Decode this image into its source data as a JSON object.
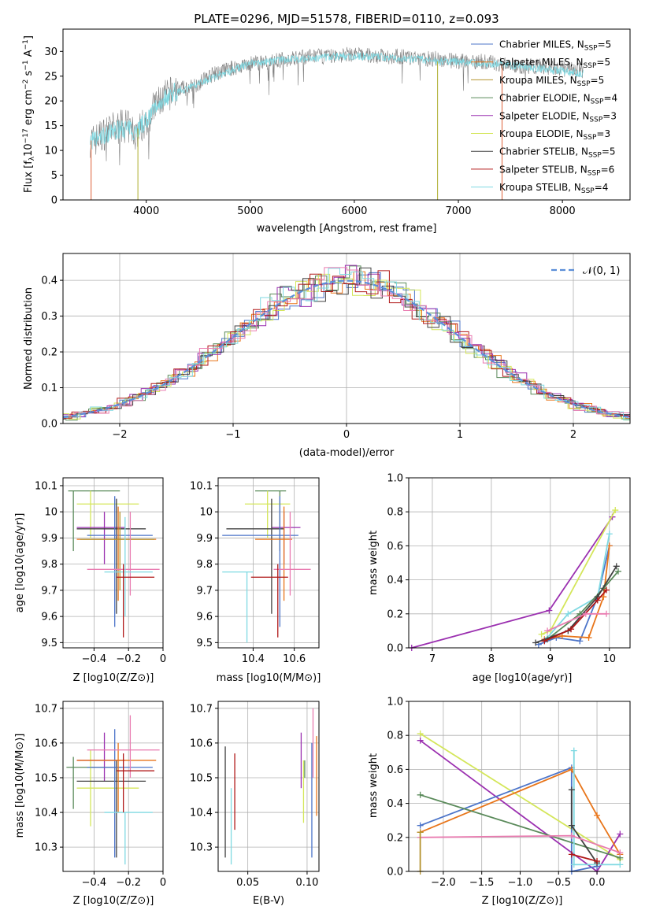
{
  "chart_data": [
    {
      "id": "spectrum",
      "type": "line",
      "title": "PLATE=0296, MJD=51578, FIBERID=0110, z=0.093",
      "xlabel": "wavelength [Angstrom, rest frame]",
      "ylabel_parts": [
        "Flux [f",
        "λ",
        "10",
        "−17",
        " erg cm",
        "−2",
        " s",
        "−1",
        " A",
        "−1",
        "]"
      ],
      "xlim": [
        3200,
        8650
      ],
      "ylim": [
        0,
        34.5
      ],
      "xticks": [
        4000,
        5000,
        6000,
        7000,
        8000
      ],
      "yticks": [
        0,
        5,
        10,
        15,
        20,
        25,
        30
      ],
      "grid": false,
      "legend_position": "top-right",
      "colors": {
        "data": "#808080",
        "models": "#7fd9e2"
      },
      "data_series": {
        "name": "",
        "x": [
          3500,
          3600,
          3700,
          3800,
          3900,
          4000,
          4100,
          4200,
          4300,
          4400,
          4500,
          4600,
          4800,
          5000,
          5200,
          5400,
          5600,
          5800,
          6000,
          6200,
          6400,
          6600,
          6800,
          7000,
          7200,
          7400,
          7600,
          7800,
          8000,
          8200
        ],
        "y": [
          12,
          13.5,
          14.5,
          15,
          13.5,
          16,
          19.5,
          21,
          22.5,
          22.5,
          23.5,
          25,
          26.5,
          27.5,
          28,
          28.5,
          29,
          29,
          29.5,
          29,
          29,
          28.5,
          28.5,
          28,
          28,
          27.5,
          27,
          27,
          26.5,
          26
        ]
      },
      "model_series": {
        "name": "",
        "x": [
          3500,
          3600,
          3700,
          3800,
          3900,
          4000,
          4100,
          4200,
          4300,
          4400,
          4500,
          4600,
          4800,
          5000,
          5200,
          5400,
          5600,
          5800,
          6000,
          6200,
          6400,
          6600,
          6800,
          7000,
          7200,
          7400,
          7600,
          7800,
          8000,
          8200
        ],
        "y": [
          12,
          13,
          14,
          14.5,
          14,
          16,
          19,
          21,
          22,
          22.5,
          23.5,
          24.5,
          26,
          27.5,
          28,
          28.5,
          28.5,
          29,
          29,
          29,
          28.5,
          28.5,
          28,
          28,
          27.5,
          27.5,
          27,
          26.5,
          26,
          25.5
        ]
      },
      "edge_drops": [
        {
          "x": 3470,
          "color": "#e06f4a"
        },
        {
          "x": 3920,
          "color": "#b5b540"
        },
        {
          "x": 6800,
          "color": "#b5b540"
        },
        {
          "x": 7420,
          "color": "#e06f4a"
        }
      ],
      "legend": [
        {
          "color": "#4c74c9",
          "pre": "Chabrier MILES, N",
          "sub": "SSP",
          "post": "=5"
        },
        {
          "color": "#e8751a",
          "pre": "Salpeter MILES, N",
          "sub": "SSP",
          "post": "=5"
        },
        {
          "color": "#b5922e",
          "pre": "Kroupa MILES, N",
          "sub": "SSP",
          "post": "=5"
        },
        {
          "color": "#5a8a5a",
          "pre": "Chabrier ELODIE, N",
          "sub": "SSP",
          "post": "=4"
        },
        {
          "color": "#9b30b0",
          "pre": "Salpeter ELODIE, N",
          "sub": "SSP",
          "post": "=3"
        },
        {
          "color": "#d4e65a",
          "pre": "Kroupa ELODIE, N",
          "sub": "SSP",
          "post": "=3"
        },
        {
          "color": "#404040",
          "pre": "Chabrier STELIB, N",
          "sub": "SSP",
          "post": "=5"
        },
        {
          "color": "#b01818",
          "pre": "Salpeter STELIB, N",
          "sub": "SSP",
          "post": "=6"
        },
        {
          "color": "#7fd9e2",
          "pre": "Kroupa STELIB, N",
          "sub": "SSP",
          "post": "=4"
        }
      ]
    },
    {
      "id": "residuals",
      "type": "line",
      "xlabel": "(data-model)/error",
      "ylabel": "Normed distribution",
      "xlim": [
        -2.5,
        2.5
      ],
      "ylim": [
        0,
        0.475
      ],
      "xticks": [
        -2,
        -1,
        0,
        1,
        2
      ],
      "ytick_labels": [
        "0.0",
        "0.1",
        "0.2",
        "0.3",
        "0.4"
      ],
      "grid": true,
      "legend_position": "top-right",
      "legend_label": "𝒩(0, 1)",
      "gaussian_color": "#5b8ed8",
      "hist_colors": [
        "#4c74c9",
        "#e8751a",
        "#5a8a5a",
        "#9b30b0",
        "#d4e65a",
        "#404040",
        "#b01818",
        "#7fd9e2",
        "#e97bb0"
      ],
      "bin_width": 0.1
    },
    {
      "id": "age-vs-Z",
      "type": "scatter",
      "xlabel": "Z [log10(Z/Z⊙)]",
      "ylabel": "age [log10(age/yr)]",
      "xlim": [
        -0.58,
        0.0
      ],
      "ylim": [
        9.48,
        10.13
      ],
      "xticks": [
        -0.4,
        -0.2,
        0.0
      ],
      "yticks": [
        9.5,
        9.6,
        9.7,
        9.8,
        9.9,
        10.0,
        10.1
      ],
      "grid": true,
      "points": [
        {
          "color": "#5a8a5a",
          "x": -0.52,
          "y": 10.08,
          "xerr": 0.0,
          "yerr": 0.0,
          "xlo": -0.55,
          "xhi": -0.25,
          "ylo": 9.85,
          "yhi": 10.08
        },
        {
          "color": "#d4e65a",
          "x": -0.42,
          "y": 10.03,
          "xlo": -0.5,
          "xhi": -0.14,
          "ylo": 9.9,
          "yhi": 10.08
        },
        {
          "color": "#9b30b0",
          "x": -0.34,
          "y": 9.94,
          "xlo": -0.5,
          "xhi": -0.22,
          "ylo": 9.8,
          "yhi": 10.0
        },
        {
          "color": "#404040",
          "x": -0.27,
          "y": 9.935,
          "xlo": -0.5,
          "xhi": -0.1,
          "ylo": 9.61,
          "yhi": 10.05
        },
        {
          "color": "#4c74c9",
          "x": -0.28,
          "y": 9.91,
          "xlo": -0.44,
          "xhi": -0.06,
          "ylo": 9.56,
          "yhi": 10.06
        },
        {
          "color": "#e8751a",
          "x": -0.26,
          "y": 9.895,
          "xlo": -0.5,
          "xhi": -0.04,
          "ylo": 9.66,
          "yhi": 10.02
        },
        {
          "color": "#b5922e",
          "x": -0.25,
          "y": 9.895,
          "xlo": -0.48,
          "xhi": -0.05,
          "ylo": 9.7,
          "yhi": 10.0
        },
        {
          "color": "#e97bb0",
          "x": -0.19,
          "y": 9.78,
          "xlo": -0.44,
          "xhi": -0.02,
          "ylo": 9.68,
          "yhi": 10.0
        },
        {
          "color": "#7fd9e2",
          "x": -0.22,
          "y": 9.77,
          "xlo": -0.34,
          "xhi": -0.06,
          "ylo": 9.6,
          "yhi": 9.98
        },
        {
          "color": "#b01818",
          "x": -0.23,
          "y": 9.75,
          "xlo": -0.27,
          "xhi": -0.05,
          "ylo": 9.52,
          "yhi": 9.8
        }
      ]
    },
    {
      "id": "age-vs-mass",
      "type": "scatter",
      "xlabel": "mass [log10(M/M⊙)]",
      "ylabel": "",
      "xlim": [
        10.23,
        10.72
      ],
      "ylim": [
        9.48,
        10.13
      ],
      "xticks": [
        10.4,
        10.6
      ],
      "yticks": [
        9.5,
        9.6,
        9.7,
        9.8,
        9.9,
        10.0,
        10.1
      ],
      "grid": true,
      "points": [
        {
          "color": "#5a8a5a",
          "ylo": 9.85,
          "yhi": 10.08,
          "y": 10.08,
          "x": 10.53,
          "xlo": 10.41,
          "xhi": 10.56
        },
        {
          "color": "#d4e65a",
          "ylo": 9.9,
          "yhi": 10.08,
          "y": 10.03,
          "x": 10.47,
          "xlo": 10.36,
          "xhi": 10.58
        },
        {
          "color": "#9b30b0",
          "ylo": 9.8,
          "yhi": 10.0,
          "y": 9.94,
          "x": 10.55,
          "xlo": 10.49,
          "xhi": 10.63
        },
        {
          "color": "#404040",
          "ylo": 9.61,
          "yhi": 10.05,
          "y": 9.935,
          "x": 10.49,
          "xlo": 10.27,
          "xhi": 10.55
        },
        {
          "color": "#4c74c9",
          "ylo": 9.56,
          "yhi": 10.06,
          "y": 9.91,
          "x": 10.53,
          "xlo": 10.25,
          "xhi": 10.62
        },
        {
          "color": "#e8751a",
          "ylo": 9.66,
          "yhi": 10.02,
          "y": 9.895,
          "x": 10.55,
          "xlo": 10.41,
          "xhi": 10.59
        },
        {
          "color": "#e97bb0",
          "ylo": 9.68,
          "yhi": 10.0,
          "y": 9.78,
          "x": 10.58,
          "xlo": 10.5,
          "xhi": 10.68
        },
        {
          "color": "#7fd9e2",
          "ylo": 9.5,
          "yhi": 9.77,
          "y": 9.77,
          "x": 10.37,
          "xlo": 10.25,
          "xhi": 10.4
        },
        {
          "color": "#b01818",
          "ylo": 9.52,
          "yhi": 9.8,
          "y": 9.75,
          "x": 10.52,
          "xlo": 10.39,
          "xhi": 10.57
        }
      ]
    },
    {
      "id": "weight-vs-age",
      "type": "line",
      "xlabel": "age [log10(age/yr)]",
      "ylabel": "mass weight",
      "xlim": [
        6.6,
        10.35
      ],
      "ylim": [
        0,
        1.0
      ],
      "xticks": [
        7,
        8,
        9,
        10
      ],
      "ytick_labels": [
        "0.0",
        "0.2",
        "0.4",
        "0.6",
        "0.8",
        "1.0"
      ],
      "grid": true,
      "series": [
        {
          "color": "#9b30b0",
          "x": [
            6.65,
            8.98,
            10.05
          ],
          "y": [
            0.0,
            0.22,
            0.77
          ]
        },
        {
          "color": "#d4e65a",
          "x": [
            8.85,
            9.0,
            10.1
          ],
          "y": [
            0.08,
            0.1,
            0.81
          ]
        },
        {
          "color": "#4c74c9",
          "x": [
            8.8,
            9.1,
            9.5,
            9.8,
            10.0
          ],
          "y": [
            0.02,
            0.06,
            0.04,
            0.3,
            0.6
          ]
        },
        {
          "color": "#e8751a",
          "x": [
            8.9,
            9.2,
            9.65,
            9.9,
            10.0
          ],
          "y": [
            0.05,
            0.07,
            0.06,
            0.3,
            0.6
          ]
        },
        {
          "color": "#7fd9e2",
          "x": [
            8.95,
            9.3,
            9.8,
            10.0
          ],
          "y": [
            0.06,
            0.2,
            0.3,
            0.67
          ]
        },
        {
          "color": "#5a8a5a",
          "x": [
            8.95,
            9.5,
            9.9,
            10.15
          ],
          "y": [
            0.05,
            0.2,
            0.35,
            0.45
          ]
        },
        {
          "color": "#404040",
          "x": [
            8.75,
            9.3,
            9.8,
            10.12
          ],
          "y": [
            0.03,
            0.1,
            0.3,
            0.48
          ]
        },
        {
          "color": "#b01818",
          "x": [
            8.9,
            9.35,
            9.8,
            9.95
          ],
          "y": [
            0.04,
            0.11,
            0.28,
            0.34
          ]
        },
        {
          "color": "#e97bb0",
          "x": [
            8.95,
            9.6,
            9.95
          ],
          "y": [
            0.1,
            0.2,
            0.2
          ]
        }
      ]
    },
    {
      "id": "mass-vs-Z",
      "type": "scatter",
      "xlabel": "Z [log10(Z/Z⊙)]",
      "ylabel": "mass [log10(M/M⊙)]",
      "xlim": [
        -0.58,
        0.0
      ],
      "ylim": [
        10.23,
        10.72
      ],
      "xticks": [
        -0.4,
        -0.2,
        0.0
      ],
      "yticks": [
        10.3,
        10.4,
        10.5,
        10.6,
        10.7
      ],
      "grid": true,
      "points": [
        {
          "color": "#5a8a5a",
          "x": -0.52,
          "y": 10.53,
          "xlo": -0.56,
          "xhi": -0.24,
          "ylo": 10.41,
          "yhi": 10.56
        },
        {
          "color": "#d4e65a",
          "x": -0.42,
          "y": 10.47,
          "xlo": -0.5,
          "xhi": -0.14,
          "ylo": 10.36,
          "yhi": 10.58
        },
        {
          "color": "#9b30b0",
          "x": -0.34,
          "y": 10.55,
          "xlo": -0.5,
          "xhi": -0.22,
          "ylo": 10.49,
          "yhi": 10.63
        },
        {
          "color": "#404040",
          "x": -0.27,
          "y": 10.49,
          "xlo": -0.5,
          "xhi": -0.1,
          "ylo": 10.27,
          "yhi": 10.55
        },
        {
          "color": "#4c74c9",
          "x": -0.28,
          "y": 10.53,
          "xlo": -0.44,
          "xhi": -0.06,
          "ylo": 10.27,
          "yhi": 10.64
        },
        {
          "color": "#e8751a",
          "x": -0.26,
          "y": 10.55,
          "xlo": -0.5,
          "xhi": -0.04,
          "ylo": 10.4,
          "yhi": 10.6
        },
        {
          "color": "#e97bb0",
          "x": -0.19,
          "y": 10.58,
          "xlo": -0.44,
          "xhi": -0.02,
          "ylo": 10.5,
          "yhi": 10.68
        },
        {
          "color": "#7fd9e2",
          "x": -0.22,
          "y": 10.4,
          "xlo": -0.34,
          "xhi": -0.06,
          "ylo": 10.25,
          "yhi": 10.4
        },
        {
          "color": "#b01818",
          "x": -0.23,
          "y": 10.52,
          "xlo": -0.27,
          "xhi": -0.05,
          "ylo": 10.4,
          "yhi": 10.57
        }
      ]
    },
    {
      "id": "mass-vs-EBV",
      "type": "scatter",
      "xlabel": "E(B-V)",
      "ylabel": "",
      "xlim": [
        0.025,
        0.11
      ],
      "ylim": [
        10.23,
        10.72
      ],
      "xticks": [
        0.05,
        0.1
      ],
      "xtick_labels": [
        "0.05",
        "0.10"
      ],
      "yticks": [
        10.3,
        10.4,
        10.5,
        10.6,
        10.7
      ],
      "grid": true,
      "points": [
        {
          "color": "#404040",
          "x": 0.031,
          "ylo": 10.27,
          "yhi": 10.59
        },
        {
          "color": "#7fd9e2",
          "x": 0.036,
          "ylo": 10.25,
          "yhi": 10.47
        },
        {
          "color": "#b01818",
          "x": 0.039,
          "ylo": 10.35,
          "yhi": 10.57
        },
        {
          "color": "#9b30b0",
          "x": 0.095,
          "ylo": 10.47,
          "yhi": 10.63
        },
        {
          "color": "#d4e65a",
          "x": 0.097,
          "ylo": 10.37,
          "yhi": 10.55
        },
        {
          "color": "#5a8a5a",
          "x": 0.098,
          "ylo": 10.5,
          "yhi": 10.55
        },
        {
          "color": "#4c74c9",
          "x": 0.104,
          "ylo": 10.27,
          "yhi": 10.6
        },
        {
          "color": "#e97bb0",
          "x": 0.105,
          "ylo": 10.5,
          "yhi": 10.7
        },
        {
          "color": "#e8751a",
          "x": 0.108,
          "ylo": 10.39,
          "yhi": 10.62
        }
      ]
    },
    {
      "id": "weight-vs-Z",
      "type": "line",
      "xlabel": "Z [log10(Z/Z⊙)]",
      "ylabel": "mass weight",
      "xlim": [
        -2.45,
        0.43
      ],
      "ylim": [
        0,
        1.0
      ],
      "xticks": [
        -2.0,
        -1.5,
        -1.0,
        -0.5,
        0.0
      ],
      "xtick_labels": [
        "−2.0",
        "−1.5",
        "−1.0",
        "−0.5",
        "0.0"
      ],
      "ytick_labels": [
        "0.0",
        "0.2",
        "0.4",
        "0.6",
        "0.8",
        "1.0"
      ],
      "grid": true,
      "series": [
        {
          "color": "#d4e65a",
          "x": [
            -2.3,
            0.3
          ],
          "y": [
            0.81,
            0.07
          ]
        },
        {
          "color": "#9b30b0",
          "x": [
            -2.3,
            0.0,
            0.3
          ],
          "y": [
            0.77,
            0.0,
            0.22
          ]
        },
        {
          "color": "#4c74c9",
          "x": [
            -2.3,
            -0.33,
            -0.33,
            0.0
          ],
          "y": [
            0.27,
            0.61,
            0.0,
            0.03
          ]
        },
        {
          "color": "#e8751a",
          "x": [
            -2.3,
            -0.33,
            0.0,
            0.3
          ],
          "y": [
            0.23,
            0.6,
            0.33,
            0.1
          ]
        },
        {
          "color": "#5a8a5a",
          "x": [
            -2.3,
            0.3
          ],
          "y": [
            0.45,
            0.08
          ]
        },
        {
          "color": "#7fd9e2",
          "x": [
            -0.3,
            -0.3,
            0.3
          ],
          "y": [
            0.71,
            0.04,
            0.04
          ]
        },
        {
          "color": "#404040",
          "x": [
            -0.33,
            -0.33,
            0.0
          ],
          "y": [
            0.48,
            0.27,
            0.05
          ]
        },
        {
          "color": "#b01818",
          "x": [
            -0.33,
            0.0
          ],
          "y": [
            0.1,
            0.06
          ]
        },
        {
          "color": "#e97bb0",
          "x": [
            -2.3,
            -0.33,
            0.3
          ],
          "y": [
            0.2,
            0.21,
            0.11
          ]
        },
        {
          "color": "#b5922e",
          "x": [
            -2.3,
            -2.3
          ],
          "y": [
            0.0,
            0.23
          ]
        }
      ]
    }
  ]
}
